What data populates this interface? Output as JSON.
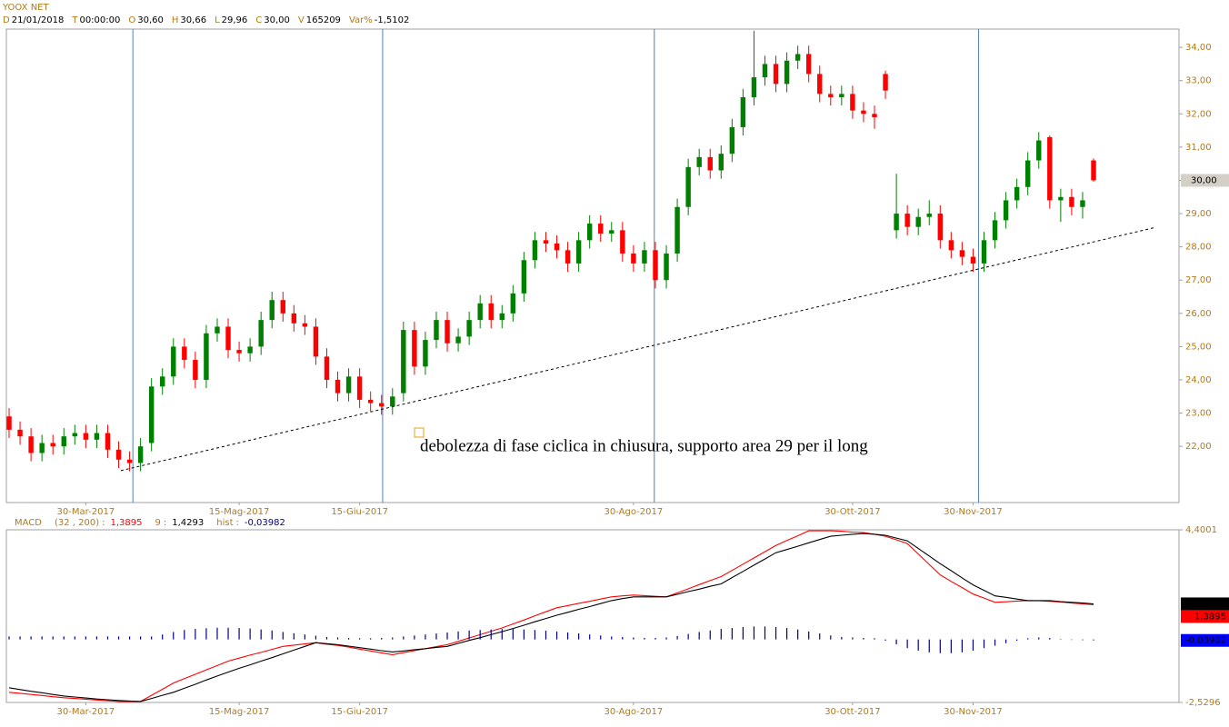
{
  "chart_data": [
    {
      "type": "candlestick",
      "title": "YOOX NET",
      "info": [
        {
          "key": "D",
          "text": "21/01/2018"
        },
        {
          "key": "T",
          "text": "00:00:00"
        },
        {
          "key": "O",
          "text": "30,60"
        },
        {
          "key": "H",
          "text": "30,66"
        },
        {
          "key": "L",
          "text": "29,96"
        },
        {
          "key": "C",
          "text": "30,00"
        },
        {
          "key": "V",
          "text": "165209"
        },
        {
          "key": "Var%",
          "text": "-1,5102"
        }
      ],
      "open": [
        22.9,
        22.5,
        22.3,
        21.8,
        22.1,
        22.0,
        22.3,
        22.4,
        22.2,
        22.4,
        21.9,
        21.6,
        21.5,
        22.1,
        23.8,
        24.1,
        25.0,
        24.6,
        24.0,
        25.4,
        25.6,
        24.9,
        24.8,
        25.0,
        25.8,
        26.4,
        26.0,
        25.7,
        25.6,
        24.7,
        24.0,
        23.6,
        24.1,
        23.4,
        23.3,
        23.2,
        23.6,
        25.5,
        24.4,
        25.2,
        25.8,
        25.1,
        25.3,
        25.8,
        26.3,
        25.8,
        26.0,
        26.6,
        27.6,
        28.2,
        28.1,
        27.9,
        27.5,
        28.2,
        28.7,
        28.4,
        28.5,
        27.8,
        27.5,
        27.9,
        27.0,
        27.8,
        29.2,
        30.4,
        30.7,
        30.3,
        30.8,
        31.6,
        32.5,
        33.1,
        33.5,
        32.9,
        33.6,
        33.8,
        33.2,
        32.6,
        32.5,
        32.6,
        32.1,
        32.0,
        33.2,
        28.5,
        29.0,
        28.6,
        28.9,
        29.0,
        28.2,
        27.9,
        27.7,
        27.5,
        28.2,
        28.8,
        29.4,
        29.8,
        30.6,
        31.3,
        29.4,
        29.5,
        29.2,
        30.6
      ],
      "high": [
        23.15,
        22.75,
        22.55,
        22.35,
        22.35,
        22.55,
        22.65,
        22.65,
        22.65,
        22.65,
        22.15,
        21.85,
        22.25,
        24.05,
        24.35,
        25.25,
        25.25,
        24.85,
        25.65,
        25.85,
        25.85,
        25.15,
        25.25,
        26.05,
        26.65,
        26.65,
        26.25,
        25.95,
        25.85,
        24.95,
        24.25,
        24.35,
        24.35,
        23.65,
        23.55,
        23.75,
        25.75,
        25.75,
        25.45,
        26.05,
        26.05,
        25.55,
        26.05,
        26.55,
        26.55,
        26.25,
        26.85,
        27.85,
        28.45,
        28.45,
        28.35,
        28.15,
        28.45,
        28.95,
        28.95,
        28.75,
        28.75,
        28.05,
        28.15,
        28.15,
        28.05,
        29.45,
        30.65,
        30.95,
        30.95,
        31.05,
        31.85,
        32.75,
        34.5,
        33.75,
        33.75,
        33.85,
        34.05,
        34.05,
        33.45,
        32.85,
        32.85,
        32.85,
        32.35,
        32.25,
        33.3,
        30.2,
        29.25,
        29.15,
        29.4,
        29.25,
        28.45,
        28.15,
        27.95,
        28.45,
        29.05,
        29.65,
        30.05,
        30.85,
        31.45,
        31.35,
        29.75,
        29.75,
        29.65,
        30.66
      ],
      "low": [
        22.25,
        22.05,
        21.55,
        21.55,
        21.75,
        21.75,
        22.05,
        21.95,
        21.95,
        21.65,
        21.35,
        21.25,
        21.25,
        21.85,
        23.55,
        23.85,
        24.35,
        23.75,
        23.75,
        25.15,
        24.65,
        24.55,
        24.55,
        24.75,
        25.55,
        25.75,
        25.45,
        25.35,
        24.45,
        23.75,
        23.35,
        23.35,
        23.15,
        23.05,
        22.95,
        22.95,
        23.35,
        24.15,
        24.15,
        24.95,
        24.85,
        24.85,
        25.05,
        25.55,
        25.55,
        25.55,
        25.75,
        26.35,
        27.35,
        27.85,
        27.65,
        27.25,
        27.25,
        27.95,
        28.15,
        28.15,
        27.55,
        27.25,
        27.25,
        26.75,
        26.75,
        27.55,
        28.95,
        30.15,
        30.05,
        30.05,
        30.55,
        31.35,
        32.25,
        32.85,
        32.65,
        32.65,
        33.35,
        32.95,
        32.35,
        32.25,
        32.25,
        31.85,
        31.75,
        31.55,
        32.45,
        28.25,
        28.35,
        28.35,
        28.65,
        27.95,
        27.65,
        27.45,
        27.25,
        27.25,
        27.95,
        28.55,
        29.15,
        29.55,
        30.35,
        29.15,
        28.75,
        28.95,
        28.85,
        29.96
      ],
      "close": [
        22.5,
        22.3,
        21.8,
        22.1,
        22.0,
        22.3,
        22.4,
        22.2,
        22.4,
        21.9,
        21.6,
        21.5,
        22.0,
        23.8,
        24.1,
        25.0,
        24.6,
        24.0,
        25.4,
        25.6,
        24.9,
        24.8,
        25.0,
        25.8,
        26.4,
        26.0,
        25.7,
        25.6,
        24.7,
        24.0,
        23.6,
        24.1,
        23.4,
        23.3,
        23.2,
        23.5,
        25.5,
        24.4,
        25.2,
        25.8,
        25.1,
        25.3,
        25.8,
        26.3,
        25.8,
        26.0,
        26.6,
        27.6,
        28.2,
        28.1,
        27.9,
        27.5,
        28.2,
        28.7,
        28.4,
        28.5,
        27.8,
        27.5,
        27.9,
        27.0,
        27.8,
        29.2,
        30.4,
        30.7,
        30.3,
        30.8,
        31.6,
        32.5,
        33.1,
        33.5,
        32.9,
        33.6,
        33.8,
        33.2,
        32.6,
        32.5,
        32.6,
        32.1,
        32.0,
        31.9,
        32.7,
        29.0,
        28.6,
        28.9,
        29.0,
        28.2,
        27.9,
        27.7,
        27.5,
        28.2,
        28.8,
        29.4,
        29.8,
        30.6,
        31.2,
        29.4,
        29.5,
        29.2,
        29.4,
        30.0
      ],
      "up_color": "#008000",
      "down_color": "#ff0000",
      "xlim": [
        -0.25,
        106.8
      ],
      "ylim": [
        20.31,
        34.55
      ],
      "xticks": [
        {
          "value": 7,
          "label": "30-Mar-2017"
        },
        {
          "value": 21,
          "label": "15-Mag-2017"
        },
        {
          "value": 32,
          "label": "15-Giu-2017"
        },
        {
          "value": 57,
          "label": "30-Ago-2017"
        },
        {
          "value": 77,
          "label": "30-Ott-2017"
        },
        {
          "value": 88,
          "label": "30-Nov-2017"
        }
      ],
      "yticks": [
        {
          "value": 22,
          "label": "22,00"
        },
        {
          "value": 23,
          "label": "23,00"
        },
        {
          "value": 24,
          "label": "24,00"
        },
        {
          "value": 25,
          "label": "25,00"
        },
        {
          "value": 26,
          "label": "26,00"
        },
        {
          "value": 27,
          "label": "27,00"
        },
        {
          "value": 28,
          "label": "28,00"
        },
        {
          "value": 29,
          "label": "29,00"
        },
        {
          "value": 30,
          "label": "30,00"
        },
        {
          "value": 31,
          "label": "31,00"
        },
        {
          "value": 32,
          "label": "32,00"
        },
        {
          "value": 33,
          "label": "33,00"
        },
        {
          "value": 34,
          "label": "34,00"
        }
      ],
      "vertical_lines": [
        11.3,
        34.1,
        58.9,
        88.5
      ],
      "vertical_line_color": "#4f81bd",
      "trendline": {
        "x": [
          10.2,
          104.7
        ],
        "y": [
          21.27,
          28.59
        ]
      },
      "last_price": {
        "value": 30,
        "label": "30,00"
      },
      "annotation": "debolezza di fase ciclica in chiusura, supporto area 29 per il long"
    },
    {
      "type": "macd",
      "title": "MACD",
      "separator": ":",
      "xlim": [
        -0.25,
        106.8
      ],
      "ylim": [
        -2.5296,
        4.4001
      ],
      "xticks": [
        {
          "value": 7,
          "label": "30-Mar-2017"
        },
        {
          "value": 21,
          "label": "15-Mag-2017"
        },
        {
          "value": 32,
          "label": "15-Giu-2017"
        },
        {
          "value": 57,
          "label": "30-Ago-2017"
        },
        {
          "value": 77,
          "label": "30-Ott-2017"
        },
        {
          "value": 88,
          "label": "30-Nov-2017"
        }
      ],
      "yticks": [
        {
          "value": 4.4001,
          "label": "4,4001"
        },
        {
          "value": -2.5296,
          "label": "-2,5296"
        }
      ],
      "series": [
        {
          "name": "(32 , 200)",
          "kind": "line",
          "color": "#ff0000",
          "value_label": "1,3895",
          "values": [
            -2.12,
            -2.16,
            -2.21,
            -2.25,
            -2.3,
            -2.34,
            -2.37,
            -2.4,
            -2.43,
            -2.46,
            -2.49,
            -2.49,
            -2.49,
            -2.24,
            -2.0,
            -1.75,
            -1.57,
            -1.4,
            -1.22,
            -1.05,
            -0.87,
            -0.75,
            -0.63,
            -0.52,
            -0.4,
            -0.28,
            -0.23,
            -0.18,
            -0.13,
            -0.19,
            -0.24,
            -0.31,
            -0.39,
            -0.46,
            -0.54,
            -0.61,
            -0.53,
            -0.45,
            -0.37,
            -0.29,
            -0.21,
            -0.08,
            0.06,
            0.19,
            0.33,
            0.46,
            0.62,
            0.78,
            0.95,
            1.11,
            1.27,
            1.36,
            1.45,
            1.53,
            1.62,
            1.71,
            1.75,
            1.78,
            1.76,
            1.73,
            1.71,
            1.87,
            2.03,
            2.2,
            2.36,
            2.52,
            2.77,
            3.02,
            3.27,
            3.52,
            3.77,
            3.97,
            4.16,
            4.36,
            4.36,
            4.36,
            4.34,
            4.31,
            4.29,
            4.22,
            4.14,
            4.0,
            3.85,
            3.43,
            3.01,
            2.59,
            2.33,
            2.08,
            1.82,
            1.66,
            1.49,
            1.51,
            1.54,
            1.56,
            1.55,
            1.53,
            1.5,
            1.46,
            1.43,
            1.3895
          ]
        },
        {
          "name": "9",
          "kind": "line",
          "color": "#000000",
          "value_label": "1,4293",
          "values": [
            -1.94,
            -2.01,
            -2.08,
            -2.14,
            -2.21,
            -2.27,
            -2.31,
            -2.35,
            -2.39,
            -2.42,
            -2.45,
            -2.47,
            -2.49,
            -2.37,
            -2.24,
            -2.12,
            -1.96,
            -1.8,
            -1.63,
            -1.47,
            -1.31,
            -1.16,
            -1.02,
            -0.87,
            -0.73,
            -0.58,
            -0.43,
            -0.28,
            -0.13,
            -0.17,
            -0.21,
            -0.27,
            -0.33,
            -0.39,
            -0.45,
            -0.5,
            -0.46,
            -0.41,
            -0.37,
            -0.32,
            -0.28,
            -0.16,
            -0.04,
            0.07,
            0.19,
            0.31,
            0.44,
            0.57,
            0.71,
            0.84,
            0.97,
            1.09,
            1.21,
            1.32,
            1.44,
            1.56,
            1.64,
            1.71,
            1.71,
            1.71,
            1.71,
            1.81,
            1.92,
            2.02,
            2.13,
            2.23,
            2.48,
            2.73,
            2.98,
            3.23,
            3.48,
            3.61,
            3.74,
            3.88,
            4.01,
            4.14,
            4.18,
            4.22,
            4.25,
            4.22,
            4.18,
            4.07,
            3.96,
            3.65,
            3.35,
            3.04,
            2.76,
            2.47,
            2.19,
            1.97,
            1.75,
            1.69,
            1.62,
            1.56,
            1.56,
            1.56,
            1.52,
            1.49,
            1.46,
            1.4293
          ]
        },
        {
          "name": "hist",
          "kind": "hist",
          "color": "#00008b",
          "value_label": "-0,03982",
          "values": [
            0.12,
            0.12,
            0.12,
            0.12,
            0.12,
            0.12,
            0.12,
            0.12,
            0.12,
            0.12,
            0.12,
            0.12,
            0.12,
            0.12,
            0.2,
            0.3,
            0.38,
            0.42,
            0.45,
            0.47,
            0.47,
            0.46,
            0.44,
            0.4,
            0.36,
            0.3,
            0.25,
            0.2,
            0.15,
            0.1,
            0.08,
            0.06,
            0.05,
            0.05,
            0.06,
            0.08,
            0.12,
            0.16,
            0.2,
            0.24,
            0.28,
            0.32,
            0.36,
            0.38,
            0.4,
            0.42,
            0.42,
            0.4,
            0.38,
            0.35,
            0.32,
            0.28,
            0.24,
            0.2,
            0.16,
            0.12,
            0.1,
            0.08,
            0.06,
            0.06,
            0.08,
            0.14,
            0.22,
            0.3,
            0.36,
            0.42,
            0.46,
            0.5,
            0.52,
            0.52,
            0.5,
            0.46,
            0.4,
            0.32,
            0.24,
            0.16,
            0.1,
            0.08,
            0.06,
            0.05,
            -0.05,
            -0.2,
            -0.35,
            -0.45,
            -0.52,
            -0.55,
            -0.55,
            -0.52,
            -0.45,
            -0.35,
            -0.25,
            -0.15,
            -0.05,
            0.05,
            0.08,
            0.06,
            0.02,
            -0.02,
            -0.03,
            -0.03982
          ]
        }
      ]
    }
  ]
}
